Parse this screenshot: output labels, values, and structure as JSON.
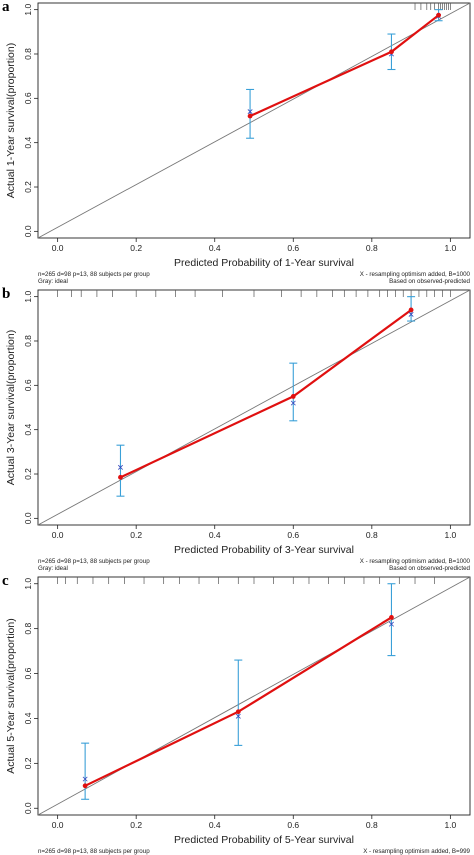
{
  "chart_data": [
    {
      "type": "scatter",
      "panel": "a",
      "xlabel": "Predicted Probability of 1-Year survival",
      "ylabel": "Actual 1-Year survival(proportion)",
      "xlim": [
        -0.05,
        1.05
      ],
      "ylim": [
        -0.03,
        1.03
      ],
      "xticks": [
        "0.0",
        "0.2",
        "0.4",
        "0.6",
        "0.8",
        "1.0"
      ],
      "yticks": [
        "0.0",
        "0.2",
        "0.4",
        "0.6",
        "0.8",
        "1.0"
      ],
      "note_left": [
        "n=265 d=98 p=13, 88 subjects per group",
        "Gray: ideal"
      ],
      "note_right": [
        "X - resampling optimism added, B=1000",
        "Based on observed-predicted"
      ],
      "points": [
        {
          "x": 0.49,
          "y": 0.52,
          "lo": 0.42,
          "hi": 0.64,
          "corrected": 0.54
        },
        {
          "x": 0.85,
          "y": 0.81,
          "lo": 0.73,
          "hi": 0.89,
          "corrected": 0.8
        },
        {
          "x": 0.97,
          "y": 0.975,
          "lo": 0.95,
          "hi": 1.0,
          "corrected": 0.97
        }
      ],
      "rug": [
        0.91,
        0.925,
        0.94,
        0.95,
        0.96,
        0.97,
        0.975,
        0.98,
        0.985,
        0.99,
        0.995,
        1.0
      ]
    },
    {
      "type": "scatter",
      "panel": "b",
      "xlabel": "Predicted Probability of 3-Year survival",
      "ylabel": "Actual 3-Year survival(proportion)",
      "xlim": [
        -0.05,
        1.05
      ],
      "ylim": [
        -0.03,
        1.03
      ],
      "xticks": [
        "0.0",
        "0.2",
        "0.4",
        "0.6",
        "0.8",
        "1.0"
      ],
      "yticks": [
        "0.0",
        "0.2",
        "0.4",
        "0.6",
        "0.8",
        "1.0"
      ],
      "note_left": [
        "n=265 d=98 p=13, 88 subjects per group",
        "Gray: ideal"
      ],
      "note_right": [
        "X - resampling optimism added, B=1000",
        "Based on observed-predicted"
      ],
      "points": [
        {
          "x": 0.16,
          "y": 0.185,
          "lo": 0.1,
          "hi": 0.33,
          "corrected": 0.23
        },
        {
          "x": 0.6,
          "y": 0.55,
          "lo": 0.44,
          "hi": 0.7,
          "corrected": 0.52
        },
        {
          "x": 0.9,
          "y": 0.94,
          "lo": 0.89,
          "hi": 1.0,
          "corrected": 0.92
        }
      ],
      "rug": [
        0.0,
        0.035,
        0.06,
        0.1,
        0.14,
        0.2,
        0.25,
        0.3,
        0.35,
        0.42,
        0.5,
        0.57,
        0.62,
        0.66,
        0.7,
        0.73,
        0.76,
        0.79,
        0.82,
        0.84,
        0.86,
        0.88,
        0.9,
        0.92,
        0.94,
        0.96,
        0.98,
        1.0
      ]
    },
    {
      "type": "scatter",
      "panel": "c",
      "xlabel": "Predicted Probability of 5-Year survival",
      "ylabel": "Actual 5-Year survival(proportion)",
      "xlim": [
        -0.05,
        1.05
      ],
      "ylim": [
        -0.03,
        1.03
      ],
      "xticks": [
        "0.0",
        "0.2",
        "0.4",
        "0.6",
        "0.8",
        "1.0"
      ],
      "yticks": [
        "0.0",
        "0.2",
        "0.4",
        "0.6",
        "0.8",
        "1.0"
      ],
      "note_left": [
        "n=265 d=98 p=13, 88 subjects per group",
        "Gray: ideal"
      ],
      "note_right": [
        "X - resampling optimism added, B=999",
        "Based on observed-predicted"
      ],
      "points": [
        {
          "x": 0.07,
          "y": 0.1,
          "lo": 0.04,
          "hi": 0.29,
          "corrected": 0.13
        },
        {
          "x": 0.46,
          "y": 0.43,
          "lo": 0.28,
          "hi": 0.66,
          "corrected": 0.41
        },
        {
          "x": 0.85,
          "y": 0.85,
          "lo": 0.68,
          "hi": 1.0,
          "corrected": 0.82
        }
      ],
      "rug": [
        0.0,
        0.02,
        0.05,
        0.09,
        0.13,
        0.17,
        0.22,
        0.27,
        0.31,
        0.36,
        0.41,
        0.46,
        0.5,
        0.55,
        0.6,
        0.64,
        0.69,
        0.73,
        0.78,
        0.82,
        0.87,
        0.91,
        0.96
      ]
    }
  ],
  "colors": {
    "observed": "#e01010",
    "ci": "#3aa0d8",
    "corrected": "#3344bb",
    "ideal": "#777777",
    "axis": "#222222"
  }
}
